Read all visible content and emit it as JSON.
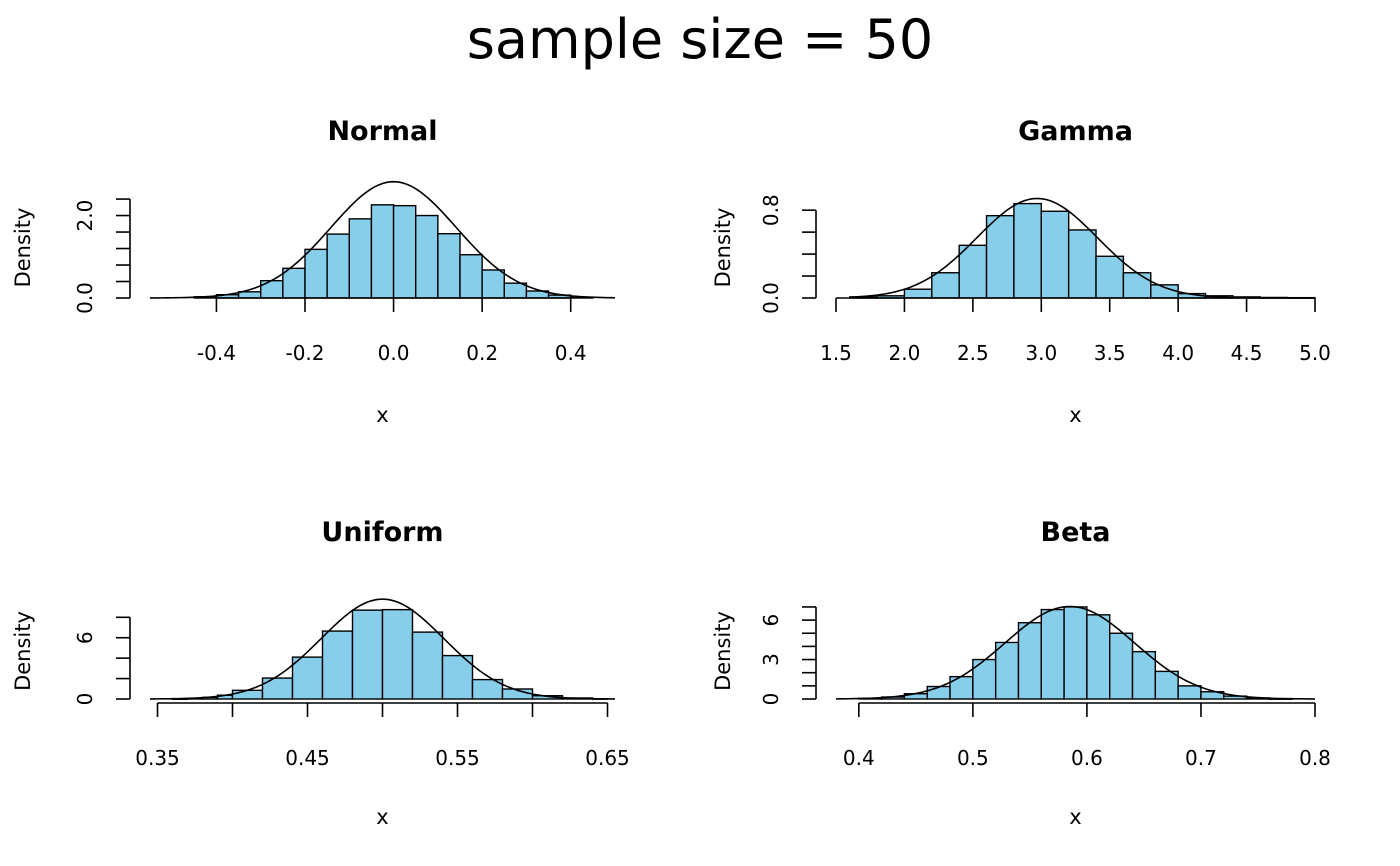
{
  "chart_data": [
    {
      "type": "bar",
      "title": "Normal",
      "xlabel": "x",
      "ylabel": "Density",
      "bar_color": "#87CEEB",
      "xlim": [
        -0.55,
        0.5
      ],
      "ylim": [
        0,
        2.45
      ],
      "x_ticks": [
        -0.4,
        -0.2,
        0.0,
        0.2,
        0.4
      ],
      "x_tick_labels": [
        "-0.4",
        "-0.2",
        "0.0",
        "0.2",
        "0.4"
      ],
      "y_ticks": [
        0.0,
        0.4,
        0.8,
        1.2,
        1.6,
        2.0,
        2.4
      ],
      "y_tick_labels": [
        "0.0",
        "",
        "",
        "",
        "",
        "2.0",
        ""
      ],
      "bins": [
        {
          "x0": -0.45,
          "x1": -0.4,
          "density": 0.03
        },
        {
          "x0": -0.4,
          "x1": -0.35,
          "density": 0.08
        },
        {
          "x0": -0.35,
          "x1": -0.3,
          "density": 0.15
        },
        {
          "x0": -0.3,
          "x1": -0.25,
          "density": 0.42
        },
        {
          "x0": -0.25,
          "x1": -0.2,
          "density": 0.72
        },
        {
          "x0": -0.2,
          "x1": -0.15,
          "density": 1.18
        },
        {
          "x0": -0.15,
          "x1": -0.1,
          "density": 1.55
        },
        {
          "x0": -0.1,
          "x1": -0.05,
          "density": 1.92
        },
        {
          "x0": -0.05,
          "x1": 0.0,
          "density": 2.26
        },
        {
          "x0": 0.0,
          "x1": 0.05,
          "density": 2.24
        },
        {
          "x0": 0.05,
          "x1": 0.1,
          "density": 2.0
        },
        {
          "x0": 0.1,
          "x1": 0.15,
          "density": 1.56
        },
        {
          "x0": 0.15,
          "x1": 0.2,
          "density": 1.05
        },
        {
          "x0": 0.2,
          "x1": 0.25,
          "density": 0.68
        },
        {
          "x0": 0.25,
          "x1": 0.3,
          "density": 0.36
        },
        {
          "x0": 0.3,
          "x1": 0.35,
          "density": 0.17
        },
        {
          "x0": 0.35,
          "x1": 0.4,
          "density": 0.07
        },
        {
          "x0": 0.4,
          "x1": 0.45,
          "density": 0.02
        }
      ],
      "curve": {
        "kind": "normal",
        "mean": 0.0,
        "sd": 0.1414,
        "from": -0.55,
        "to": 0.5
      }
    },
    {
      "type": "bar",
      "title": "Gamma",
      "xlabel": "x",
      "ylabel": "Density",
      "bar_color": "#87CEEB",
      "xlim": [
        1.5,
        5.0
      ],
      "ylim": [
        0,
        0.92
      ],
      "x_ticks": [
        1.5,
        2.0,
        2.5,
        3.0,
        3.5,
        4.0,
        4.5,
        5.0
      ],
      "x_tick_labels": [
        "1.5",
        "2.0",
        "2.5",
        "3.0",
        "3.5",
        "4.0",
        "4.5",
        "5.0"
      ],
      "y_ticks": [
        0.0,
        0.2,
        0.4,
        0.6,
        0.8
      ],
      "y_tick_labels": [
        "0.0",
        "",
        "",
        "",
        "0.8"
      ],
      "bins": [
        {
          "x0": 1.6,
          "x1": 1.8,
          "density": 0.01
        },
        {
          "x0": 1.8,
          "x1": 2.0,
          "density": 0.02
        },
        {
          "x0": 2.0,
          "x1": 2.2,
          "density": 0.08
        },
        {
          "x0": 2.2,
          "x1": 2.4,
          "density": 0.23
        },
        {
          "x0": 2.4,
          "x1": 2.6,
          "density": 0.48
        },
        {
          "x0": 2.6,
          "x1": 2.8,
          "density": 0.75
        },
        {
          "x0": 2.8,
          "x1": 3.0,
          "density": 0.86
        },
        {
          "x0": 3.0,
          "x1": 3.2,
          "density": 0.79
        },
        {
          "x0": 3.2,
          "x1": 3.4,
          "density": 0.62
        },
        {
          "x0": 3.4,
          "x1": 3.6,
          "density": 0.38
        },
        {
          "x0": 3.6,
          "x1": 3.8,
          "density": 0.23
        },
        {
          "x0": 3.8,
          "x1": 4.0,
          "density": 0.12
        },
        {
          "x0": 4.0,
          "x1": 4.2,
          "density": 0.04
        },
        {
          "x0": 4.2,
          "x1": 4.4,
          "density": 0.02
        },
        {
          "x0": 4.4,
          "x1": 4.6,
          "density": 0.01
        },
        {
          "x0": 4.6,
          "x1": 4.8,
          "density": 0.005
        },
        {
          "x0": 4.8,
          "x1": 5.0,
          "density": 0.003
        }
      ],
      "curve": {
        "kind": "normal",
        "mean": 2.97,
        "sd": 0.44,
        "from": 1.6,
        "to": 5.0
      }
    },
    {
      "type": "bar",
      "title": "Uniform",
      "xlabel": "x",
      "ylabel": "Density",
      "bar_color": "#87CEEB",
      "xlim": [
        0.345,
        0.655
      ],
      "ylim": [
        0,
        9.4
      ],
      "x_ticks": [
        0.35,
        0.4,
        0.45,
        0.5,
        0.55,
        0.6,
        0.65
      ],
      "x_tick_labels": [
        "0.35",
        "",
        "0.45",
        "",
        "0.55",
        "",
        "0.65"
      ],
      "y_ticks": [
        0,
        2,
        4,
        6,
        8
      ],
      "y_tick_labels": [
        "0",
        "",
        "",
        "6",
        ""
      ],
      "bins": [
        {
          "x0": 0.36,
          "x1": 0.37,
          "density": 0.02
        },
        {
          "x0": 0.37,
          "x1": 0.38,
          "density": 0.07
        },
        {
          "x0": 0.38,
          "x1": 0.39,
          "density": 0.16
        },
        {
          "x0": 0.39,
          "x1": 0.4,
          "density": 0.37
        },
        {
          "x0": 0.4,
          "x1": 0.42,
          "density": 0.85
        },
        {
          "x0": 0.42,
          "x1": 0.44,
          "density": 2.05
        },
        {
          "x0": 0.44,
          "x1": 0.46,
          "density": 4.1
        },
        {
          "x0": 0.46,
          "x1": 0.48,
          "density": 6.65
        },
        {
          "x0": 0.48,
          "x1": 0.5,
          "density": 8.7
        },
        {
          "x0": 0.5,
          "x1": 0.52,
          "density": 8.75
        },
        {
          "x0": 0.52,
          "x1": 0.54,
          "density": 6.55
        },
        {
          "x0": 0.54,
          "x1": 0.56,
          "density": 4.25
        },
        {
          "x0": 0.56,
          "x1": 0.58,
          "density": 1.9
        },
        {
          "x0": 0.58,
          "x1": 0.6,
          "density": 0.98
        },
        {
          "x0": 0.6,
          "x1": 0.62,
          "density": 0.32
        },
        {
          "x0": 0.62,
          "x1": 0.64,
          "density": 0.1
        },
        {
          "x0": 0.64,
          "x1": 0.65,
          "density": 0.03
        }
      ],
      "curve": {
        "kind": "normal",
        "mean": 0.5,
        "sd": 0.0408,
        "from": 0.345,
        "to": 0.655
      }
    },
    {
      "type": "bar",
      "title": "Beta",
      "xlabel": "x",
      "ylabel": "Density",
      "bar_color": "#87CEEB",
      "xlim": [
        0.38,
        0.8
      ],
      "ylim": [
        0,
        7.3
      ],
      "x_ticks": [
        0.4,
        0.5,
        0.6,
        0.7,
        0.8
      ],
      "x_tick_labels": [
        "0.4",
        "0.5",
        "0.6",
        "0.7",
        "0.8"
      ],
      "y_ticks": [
        0,
        1,
        2,
        3,
        4,
        5,
        6,
        7
      ],
      "y_tick_labels": [
        "0",
        "",
        "",
        "3",
        "",
        "",
        "6",
        ""
      ],
      "bins": [
        {
          "x0": 0.4,
          "x1": 0.42,
          "density": 0.05
        },
        {
          "x0": 0.42,
          "x1": 0.44,
          "density": 0.15
        },
        {
          "x0": 0.44,
          "x1": 0.46,
          "density": 0.4
        },
        {
          "x0": 0.46,
          "x1": 0.48,
          "density": 0.95
        },
        {
          "x0": 0.48,
          "x1": 0.5,
          "density": 1.7
        },
        {
          "x0": 0.5,
          "x1": 0.52,
          "density": 3.0
        },
        {
          "x0": 0.52,
          "x1": 0.54,
          "density": 4.3
        },
        {
          "x0": 0.54,
          "x1": 0.56,
          "density": 5.8
        },
        {
          "x0": 0.56,
          "x1": 0.58,
          "density": 6.8
        },
        {
          "x0": 0.58,
          "x1": 0.6,
          "density": 7.0
        },
        {
          "x0": 0.6,
          "x1": 0.62,
          "density": 6.4
        },
        {
          "x0": 0.62,
          "x1": 0.64,
          "density": 5.0
        },
        {
          "x0": 0.64,
          "x1": 0.66,
          "density": 3.6
        },
        {
          "x0": 0.66,
          "x1": 0.68,
          "density": 2.1
        },
        {
          "x0": 0.68,
          "x1": 0.7,
          "density": 1.0
        },
        {
          "x0": 0.7,
          "x1": 0.72,
          "density": 0.55
        },
        {
          "x0": 0.72,
          "x1": 0.74,
          "density": 0.22
        },
        {
          "x0": 0.74,
          "x1": 0.76,
          "density": 0.08
        },
        {
          "x0": 0.76,
          "x1": 0.78,
          "density": 0.02
        }
      ],
      "curve": {
        "kind": "normal",
        "mean": 0.585,
        "sd": 0.0567,
        "from": 0.38,
        "to": 0.8
      }
    }
  ],
  "figure": {
    "title": "sample size = 50"
  }
}
